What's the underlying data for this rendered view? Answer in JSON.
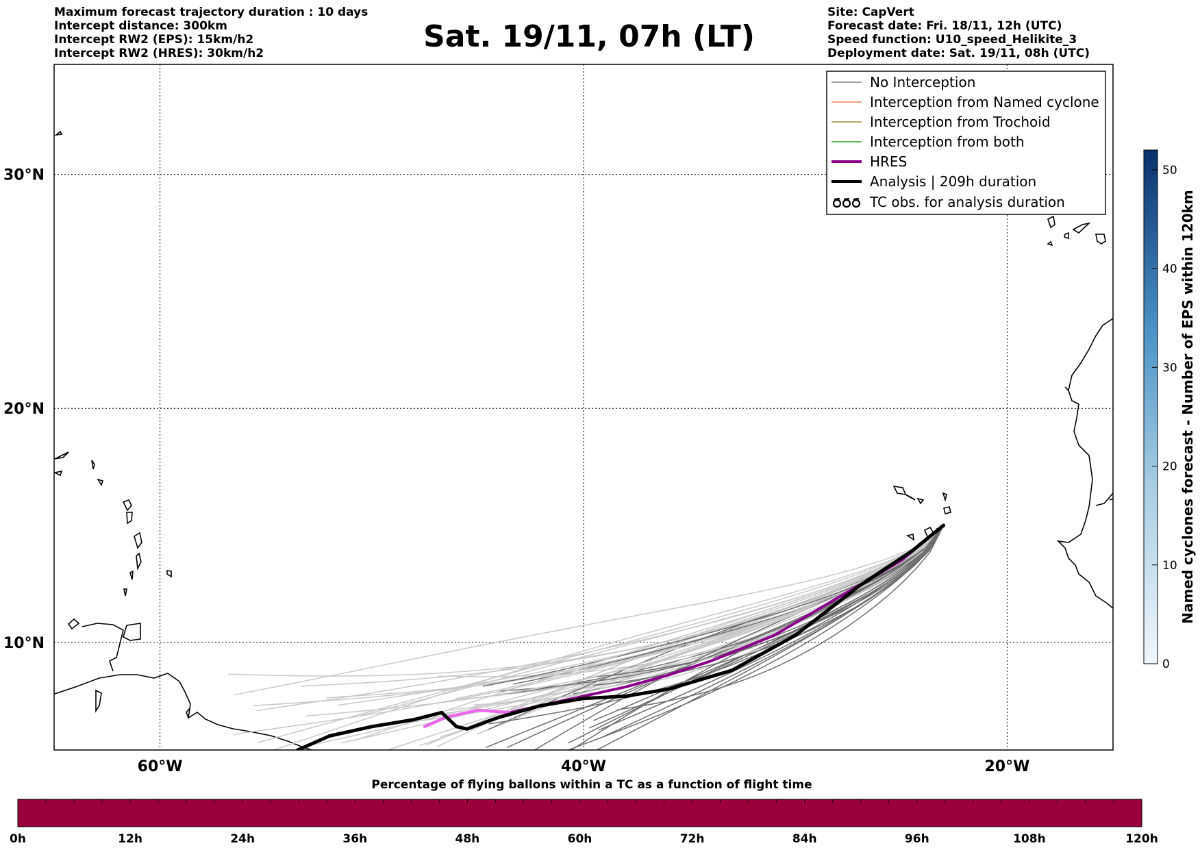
{
  "header_left": [
    "Maximum forecast trajectory duration : 10 days",
    "Intercept distance: 300km",
    "Intercept RW2 (EPS):  15km/h2",
    "Intercept RW2 (HRES): 30km/h2"
  ],
  "header_right": [
    "Site: CapVert",
    "Forecast date: Fri. 18/11, 12h (UTC)",
    "Speed function: U10_speed_Helikite_3",
    "Deployment date: Sat. 19/11, 08h (UTC)"
  ],
  "title": "Sat. 19/11, 07h (LT)",
  "map": {
    "lon_labels": [
      "60°W",
      "40°W",
      "20°W"
    ],
    "lat_labels": [
      "30°N",
      "20°N",
      "10°N"
    ],
    "lon_range": [
      -65,
      -15
    ],
    "lat_range": [
      5.4,
      34.7
    ],
    "grid": "dotted"
  },
  "legend": {
    "items": [
      {
        "label": "No Interception",
        "color": "#808080",
        "style": "thin"
      },
      {
        "label": "Interception from Named cyclone",
        "color": "#ff7f50",
        "style": "thin"
      },
      {
        "label": "Interception from Trochoid",
        "color": "#9b8b2a",
        "style": "thin"
      },
      {
        "label": "Interception from both",
        "color": "#2ca02c",
        "style": "thin"
      },
      {
        "label": "HRES",
        "color": "#8b008b",
        "style": "thick"
      },
      {
        "label": "Analysis | 209h duration",
        "color": "#000000",
        "style": "thick"
      },
      {
        "label": "TC obs. for analysis duration",
        "color": "#000000",
        "style": "tc-symbol"
      }
    ]
  },
  "colorbar_right": {
    "title": "Named cyclones forecast - Number of EPS within 120km",
    "ticks": [
      "0",
      "10",
      "20",
      "30",
      "40",
      "50"
    ],
    "range": [
      0,
      52
    ],
    "colors": [
      "#f0f6fc",
      "#08306b"
    ]
  },
  "colorbar_bottom": {
    "title": "Percentage of flying ballons within a TC as a function of flight time",
    "ticks": [
      "0h",
      "12h",
      "24h",
      "36h",
      "48h",
      "60h",
      "72h",
      "84h",
      "96h",
      "108h",
      "120h"
    ],
    "fill_color": "#9b003c"
  },
  "chart_data": {
    "type": "line",
    "xlabel": "",
    "ylabel": "",
    "xlim": [
      -65,
      -15
    ],
    "ylim": [
      5.4,
      34.7
    ],
    "series": [
      {
        "name": "HRES",
        "x": [
          -23.0,
          -25.0,
          -28.0,
          -31.0,
          -34.0,
          -36.0,
          -38.0,
          -40.0,
          -42.0,
          -43.5,
          -45.0,
          -46.5,
          -47.5
        ],
        "y": [
          15.0,
          13.5,
          11.9,
          10.3,
          9.2,
          8.6,
          8.1,
          7.7,
          7.3,
          7.0,
          7.1,
          6.8,
          6.4
        ]
      },
      {
        "name": "Analysis | 209h duration",
        "x": [
          -23.0,
          -24.5,
          -27.0,
          -30.0,
          -33.0,
          -36.0,
          -38.0,
          -40.0,
          -42.0,
          -44.0,
          -45.5,
          -46.0,
          -46.7,
          -48.0,
          -50.0,
          -52.0,
          -53.5
        ],
        "y": [
          15.0,
          13.9,
          12.4,
          10.3,
          8.8,
          8.0,
          7.7,
          7.6,
          7.3,
          6.8,
          6.3,
          6.4,
          7.0,
          6.7,
          6.4,
          6.0,
          5.4
        ]
      }
    ]
  }
}
